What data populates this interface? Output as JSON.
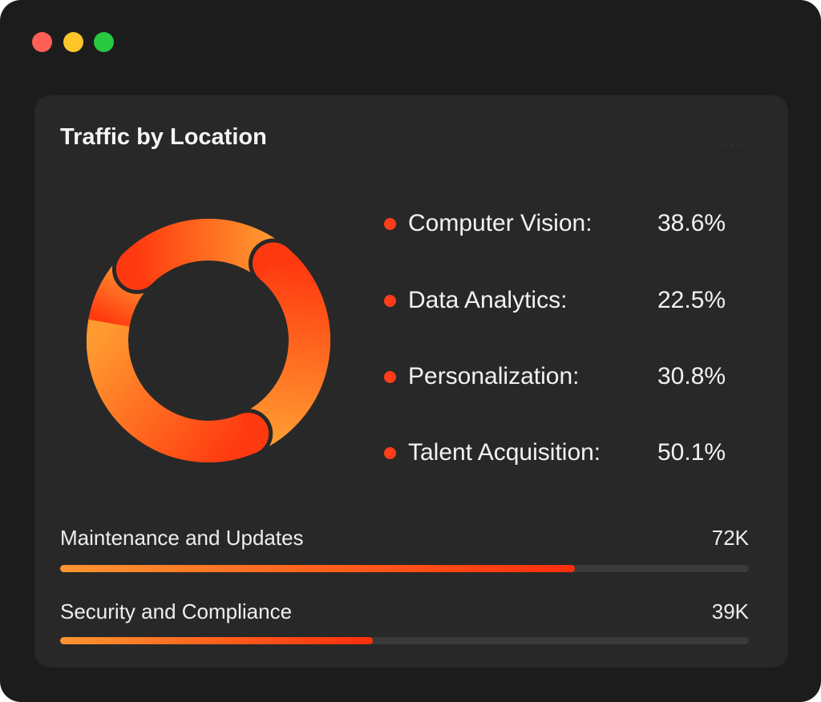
{
  "window": {
    "controls": [
      {
        "name": "close",
        "color": "#ff5f57"
      },
      {
        "name": "minimize",
        "color": "#ffc629"
      },
      {
        "name": "maximize",
        "color": "#28c840"
      }
    ]
  },
  "card": {
    "title": "Traffic by Location",
    "more_icon": "ellipsis-icon",
    "more_label": "···"
  },
  "chart_data": {
    "type": "pie",
    "variant": "donut",
    "title": "Traffic by Location",
    "legend": [
      {
        "label": "Computer Vision:",
        "value": "38.6%"
      },
      {
        "label": "Data Analytics:",
        "value": "22.5%"
      },
      {
        "label": "Personalization:",
        "value": "30.8%"
      },
      {
        "label": "Talent Acquisition:",
        "value": "50.1%"
      }
    ],
    "values": [
      38.6,
      22.5,
      30.8,
      50.1
    ],
    "legend_position": "right",
    "colors": {
      "start": "#ff3a10",
      "end": "#ff9a30",
      "legend_dot": "#ff3d1a"
    }
  },
  "bars": [
    {
      "label": "Maintenance and Updates",
      "value": "72K",
      "fill_percent": 74.7
    },
    {
      "label": "Security and Compliance",
      "value": "39K",
      "fill_percent": 45.4
    }
  ]
}
